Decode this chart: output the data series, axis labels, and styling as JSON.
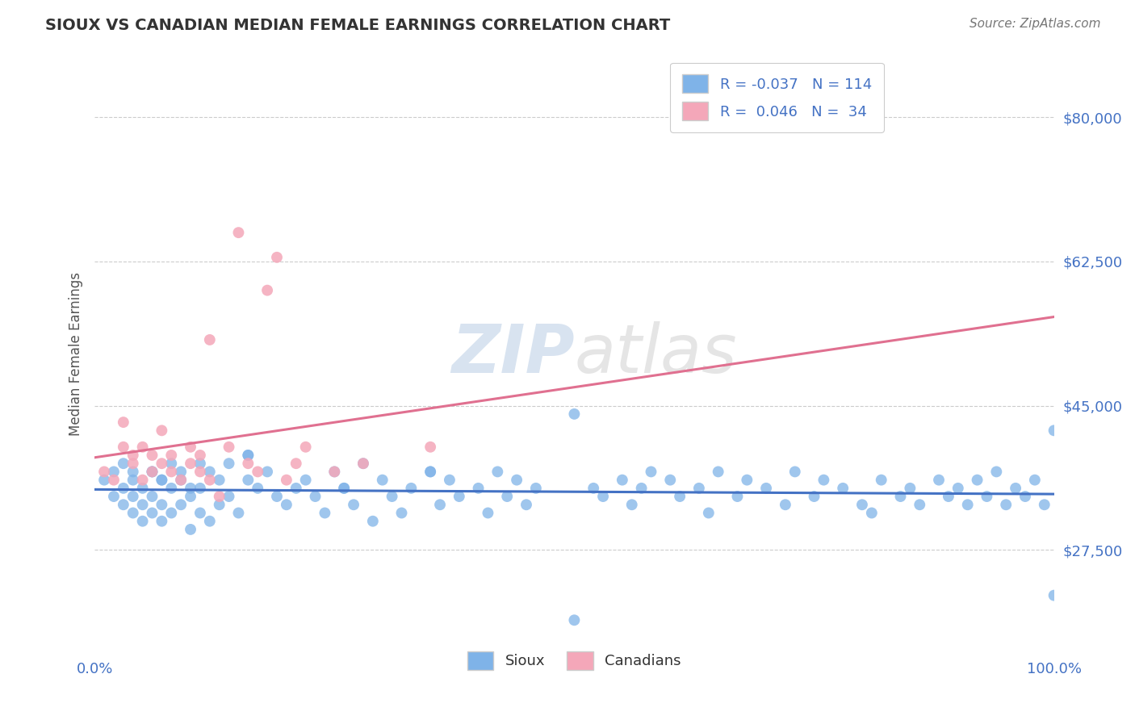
{
  "title": "SIOUX VS CANADIAN MEDIAN FEMALE EARNINGS CORRELATION CHART",
  "source_text": "Source: ZipAtlas.com",
  "ylabel": "Median Female Earnings",
  "xlim": [
    0.0,
    1.0
  ],
  "ylim": [
    15000,
    87500
  ],
  "yticks": [
    27500,
    45000,
    62500,
    80000
  ],
  "ytick_labels": [
    "$27,500",
    "$45,000",
    "$62,500",
    "$80,000"
  ],
  "xtick_labels": [
    "0.0%",
    "100.0%"
  ],
  "background_color": "#ffffff",
  "grid_color": "#cccccc",
  "sioux_color": "#7fb3e8",
  "canadian_color": "#f4a7b9",
  "sioux_line_color": "#4472c4",
  "canadian_line_color": "#e07090",
  "r_sioux": -0.037,
  "n_sioux": 114,
  "r_canadian": 0.046,
  "n_canadian": 34,
  "watermark_zip": "ZIP",
  "watermark_atlas": "atlas",
  "sioux_x": [
    0.01,
    0.02,
    0.02,
    0.03,
    0.03,
    0.04,
    0.04,
    0.04,
    0.05,
    0.05,
    0.05,
    0.06,
    0.06,
    0.06,
    0.07,
    0.07,
    0.07,
    0.08,
    0.08,
    0.09,
    0.09,
    0.1,
    0.1,
    0.11,
    0.11,
    0.12,
    0.12,
    0.13,
    0.13,
    0.14,
    0.15,
    0.16,
    0.16,
    0.17,
    0.18,
    0.19,
    0.2,
    0.21,
    0.22,
    0.23,
    0.24,
    0.25,
    0.26,
    0.27,
    0.28,
    0.29,
    0.3,
    0.31,
    0.32,
    0.33,
    0.35,
    0.36,
    0.37,
    0.38,
    0.4,
    0.41,
    0.42,
    0.43,
    0.44,
    0.45,
    0.46,
    0.5,
    0.52,
    0.53,
    0.55,
    0.56,
    0.57,
    0.58,
    0.6,
    0.61,
    0.63,
    0.64,
    0.65,
    0.67,
    0.68,
    0.7,
    0.72,
    0.73,
    0.75,
    0.76,
    0.78,
    0.8,
    0.81,
    0.82,
    0.84,
    0.85,
    0.86,
    0.88,
    0.89,
    0.9,
    0.91,
    0.92,
    0.93,
    0.94,
    0.95,
    0.96,
    0.97,
    0.98,
    0.99,
    1.0,
    0.03,
    0.04,
    0.06,
    0.07,
    0.08,
    0.09,
    0.1,
    0.11,
    0.14,
    0.16,
    0.26,
    0.35,
    0.5,
    1.0
  ],
  "sioux_y": [
    36000,
    34000,
    37000,
    33000,
    35000,
    32000,
    34000,
    36000,
    31000,
    33000,
    35000,
    32000,
    34000,
    37000,
    31000,
    33000,
    36000,
    32000,
    35000,
    33000,
    36000,
    30000,
    34000,
    32000,
    35000,
    31000,
    37000,
    33000,
    36000,
    34000,
    32000,
    36000,
    39000,
    35000,
    37000,
    34000,
    33000,
    35000,
    36000,
    34000,
    32000,
    37000,
    35000,
    33000,
    38000,
    31000,
    36000,
    34000,
    32000,
    35000,
    37000,
    33000,
    36000,
    34000,
    35000,
    32000,
    37000,
    34000,
    36000,
    33000,
    35000,
    44000,
    35000,
    34000,
    36000,
    33000,
    35000,
    37000,
    36000,
    34000,
    35000,
    32000,
    37000,
    34000,
    36000,
    35000,
    33000,
    37000,
    34000,
    36000,
    35000,
    33000,
    32000,
    36000,
    34000,
    35000,
    33000,
    36000,
    34000,
    35000,
    33000,
    36000,
    34000,
    37000,
    33000,
    35000,
    34000,
    36000,
    33000,
    42000,
    38000,
    37000,
    37000,
    36000,
    38000,
    37000,
    35000,
    38000,
    38000,
    39000,
    35000,
    37000,
    19000,
    22000
  ],
  "canadian_x": [
    0.01,
    0.02,
    0.03,
    0.03,
    0.04,
    0.04,
    0.05,
    0.05,
    0.06,
    0.06,
    0.07,
    0.07,
    0.08,
    0.08,
    0.09,
    0.1,
    0.1,
    0.11,
    0.11,
    0.12,
    0.12,
    0.13,
    0.14,
    0.15,
    0.16,
    0.17,
    0.18,
    0.19,
    0.2,
    0.21,
    0.22,
    0.25,
    0.28,
    0.35
  ],
  "canadian_y": [
    37000,
    36000,
    40000,
    43000,
    39000,
    38000,
    36000,
    40000,
    37000,
    39000,
    38000,
    42000,
    37000,
    39000,
    36000,
    40000,
    38000,
    37000,
    39000,
    36000,
    53000,
    34000,
    40000,
    66000,
    38000,
    37000,
    59000,
    63000,
    36000,
    38000,
    40000,
    37000,
    38000,
    40000
  ]
}
